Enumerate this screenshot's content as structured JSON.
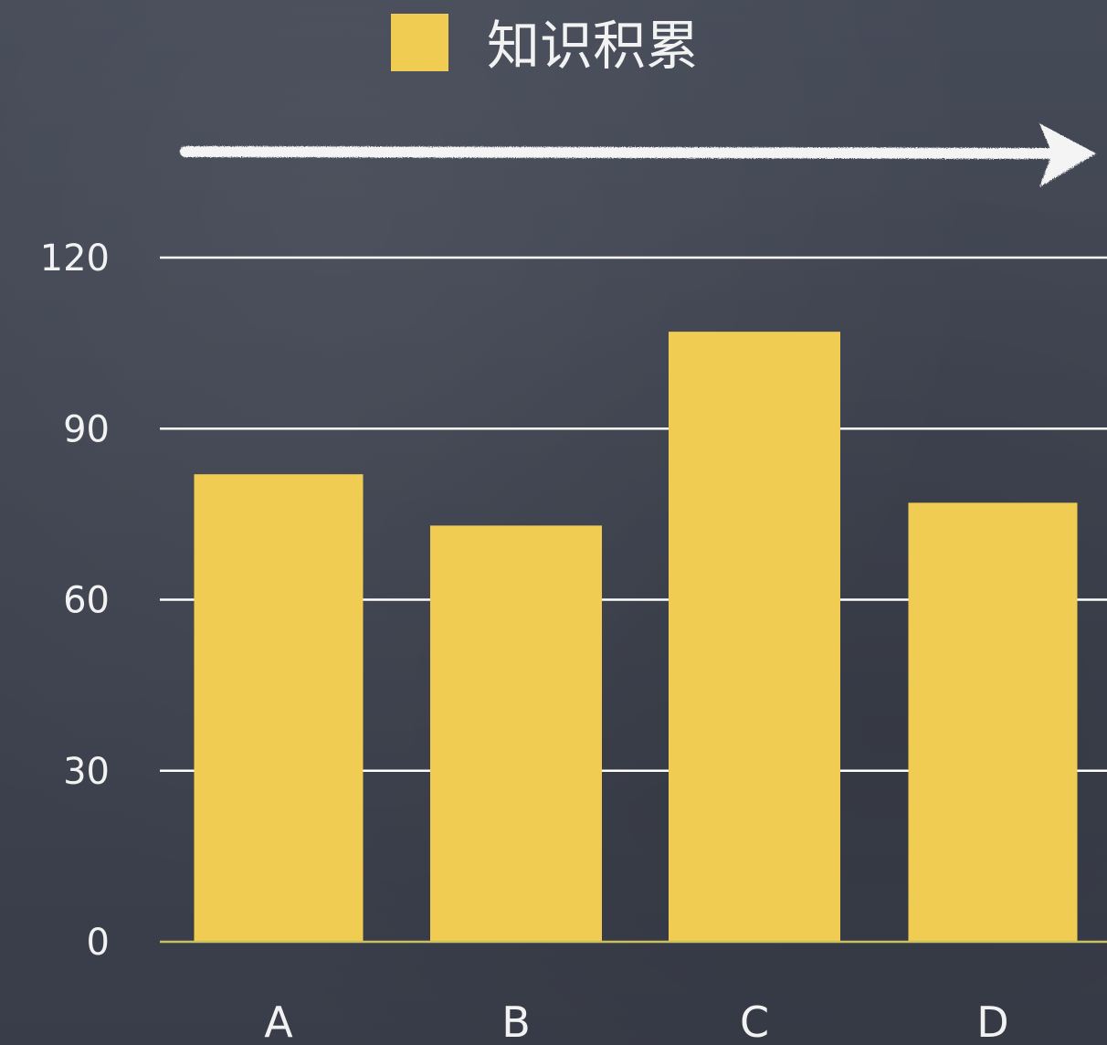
{
  "chart_data": {
    "type": "bar",
    "categories": [
      "A",
      "B",
      "C",
      "D"
    ],
    "series": [
      {
        "name": "知识积累",
        "values": [
          82,
          73,
          107,
          77
        ]
      }
    ],
    "ylim": [
      0,
      120
    ],
    "yticks": [
      0,
      30,
      60,
      90,
      120
    ],
    "grid": true,
    "legend_position": "top-center",
    "bar_color": "#f0cc52",
    "background_color": "#3d4250",
    "text_color": "#f2f2f2",
    "decoration": "chalk-arrow-right"
  }
}
